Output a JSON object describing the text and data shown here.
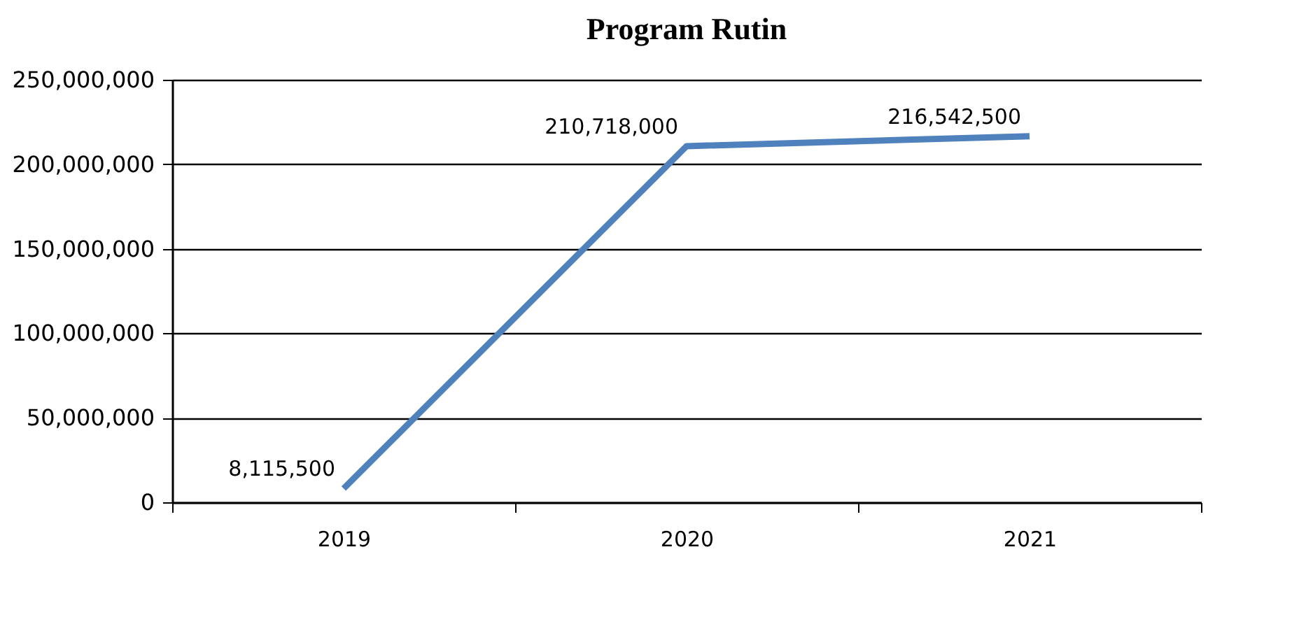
{
  "chart_data": {
    "type": "line",
    "title": "Program Rutin",
    "categories": [
      "2019",
      "2020",
      "2021"
    ],
    "series": [
      {
        "color": "#4f81bd",
        "values": [
          8115500,
          210718000,
          216542500
        ],
        "value_labels": [
          "8,115,500",
          "210,718,000",
          "216,542,500"
        ]
      }
    ],
    "ylim": [
      0,
      250000000
    ],
    "yticks": [
      0,
      {
        "value": 50000000,
        "label": "50,000,000"
      },
      {
        "value": 100000000,
        "label": "100,000,000"
      },
      {
        "value": 150000000,
        "label": "150,000,000"
      },
      {
        "value": 200000000,
        "label": "200,000,000"
      },
      {
        "value": 250000000,
        "label": "250,000,000"
      }
    ],
    "grid": "y",
    "marker": "none",
    "line_style": "solid"
  }
}
